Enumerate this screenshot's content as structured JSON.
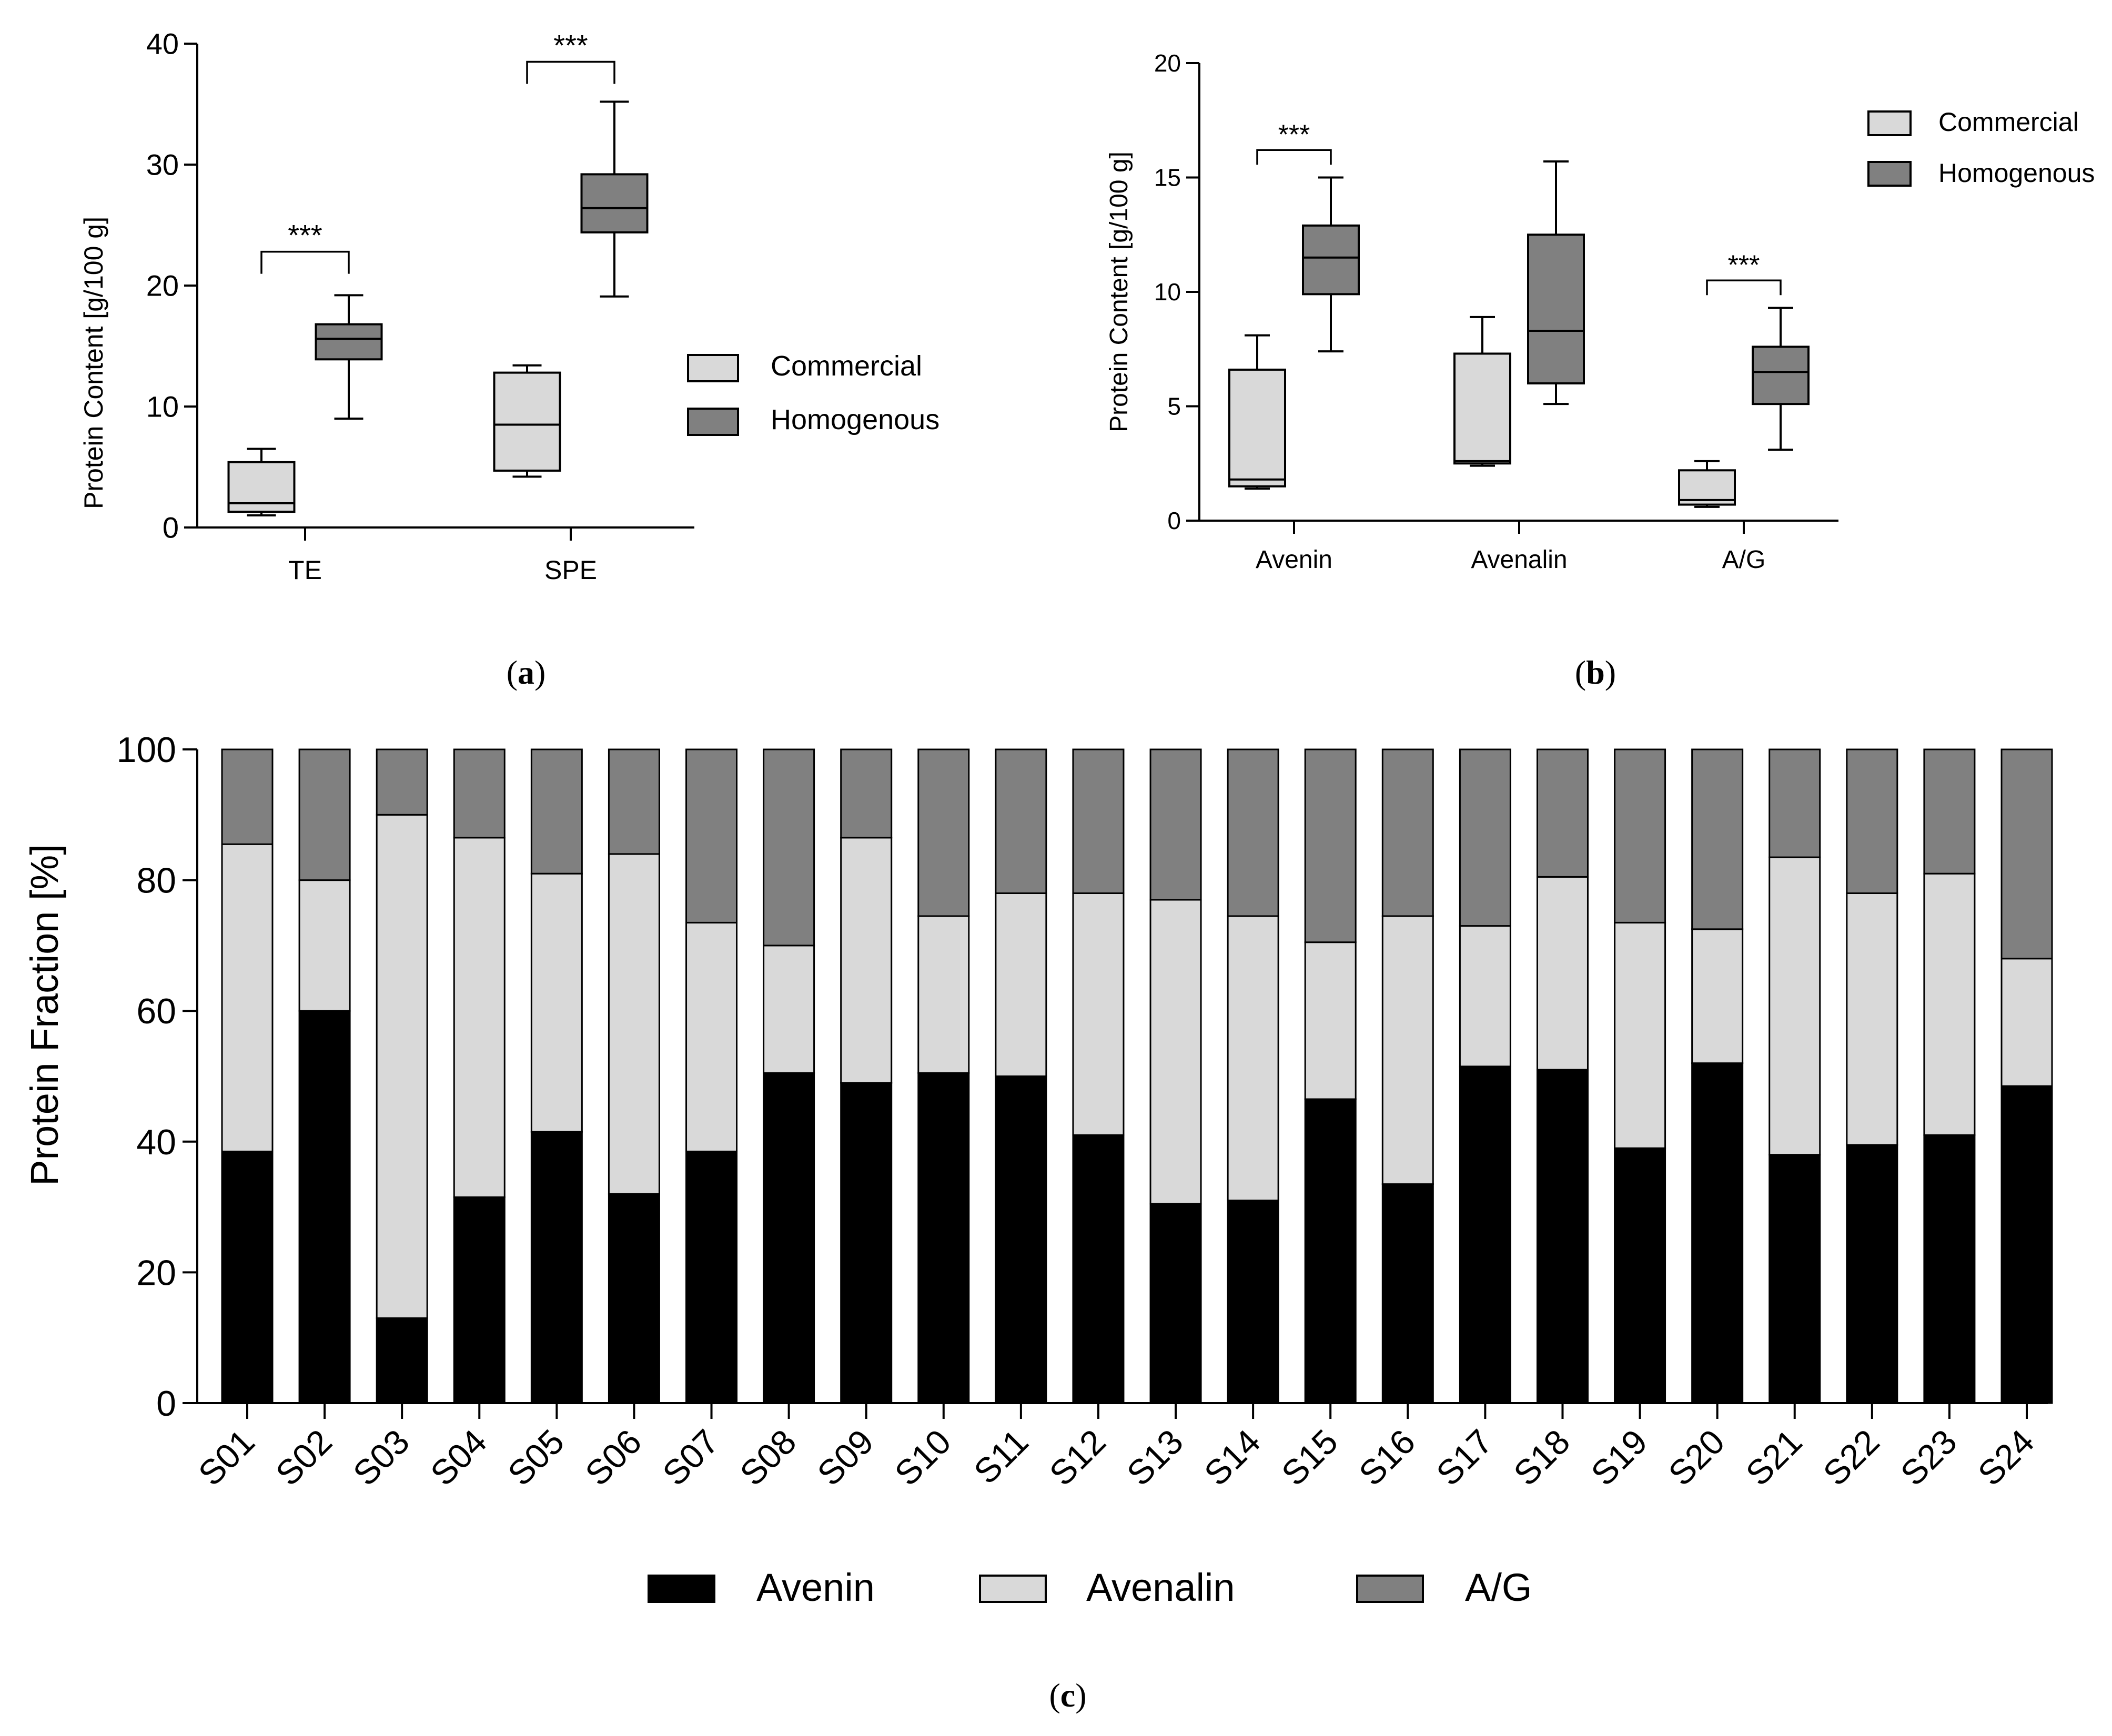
{
  "colors": {
    "commercial": "#d9d9d9",
    "homogenous": "#808080",
    "avenin": "#000000",
    "avenalin": "#d9d9d9",
    "ag": "#808080"
  },
  "chart_data": [
    {
      "id": "a",
      "type": "box",
      "panel_label_open": "(",
      "panel_label_letter": "a",
      "panel_label_close": ")",
      "ylabel": "Protein Content [g/100 g]",
      "ylim": [
        0,
        40
      ],
      "yticks": [
        "0",
        "10",
        "20",
        "30",
        "40"
      ],
      "categories": [
        "TE",
        "SPE"
      ],
      "legend": [
        "Commercial",
        "Homogenous"
      ],
      "boxes": [
        {
          "category": "TE",
          "series": "Commercial",
          "min": 1.0,
          "q1": 1.3,
          "median": 2.0,
          "q3": 5.4,
          "max": 6.5
        },
        {
          "category": "TE",
          "series": "Homogenous",
          "min": 9.0,
          "q1": 13.9,
          "median": 15.6,
          "q3": 16.8,
          "max": 19.2
        },
        {
          "category": "SPE",
          "series": "Commercial",
          "min": 4.2,
          "q1": 4.7,
          "median": 8.5,
          "q3": 12.8,
          "max": 13.4
        },
        {
          "category": "SPE",
          "series": "Homogenous",
          "min": 19.1,
          "q1": 24.4,
          "median": 26.4,
          "q3": 29.2,
          "max": 35.2
        }
      ],
      "significance": [
        {
          "category": "TE",
          "label": "***",
          "level": 22.8
        },
        {
          "category": "SPE",
          "label": "***",
          "level": 38.5
        }
      ]
    },
    {
      "id": "b",
      "type": "box",
      "panel_label_open": "(",
      "panel_label_letter": "b",
      "panel_label_close": ")",
      "ylabel": "Protein Content [g/100 g]",
      "ylim": [
        0,
        20
      ],
      "yticks": [
        "0",
        "5",
        "10",
        "15",
        "20"
      ],
      "categories": [
        "Avenin",
        "Avenalin",
        "A/G"
      ],
      "legend": [
        "Commercial",
        "Homogenous"
      ],
      "boxes": [
        {
          "category": "Avenin",
          "series": "Commercial",
          "min": 1.4,
          "q1": 1.5,
          "median": 1.8,
          "q3": 6.6,
          "max": 8.1
        },
        {
          "category": "Avenin",
          "series": "Homogenous",
          "min": 7.4,
          "q1": 9.9,
          "median": 11.5,
          "q3": 12.9,
          "max": 15.0
        },
        {
          "category": "Avenalin",
          "series": "Commercial",
          "min": 2.4,
          "q1": 2.5,
          "median": 2.6,
          "q3": 7.3,
          "max": 8.9
        },
        {
          "category": "Avenalin",
          "series": "Homogenous",
          "min": 5.1,
          "q1": 6.0,
          "median": 8.3,
          "q3": 12.5,
          "max": 15.7
        },
        {
          "category": "A/G",
          "series": "Commercial",
          "min": 0.6,
          "q1": 0.7,
          "median": 0.9,
          "q3": 2.2,
          "max": 2.6
        },
        {
          "category": "A/G",
          "series": "Homogenous",
          "min": 3.1,
          "q1": 5.1,
          "median": 6.5,
          "q3": 7.6,
          "max": 9.3
        }
      ],
      "significance": [
        {
          "category": "Avenin",
          "label": "***",
          "level": 16.2
        },
        {
          "category": "A/G",
          "label": "***",
          "level": 10.5
        }
      ]
    },
    {
      "id": "c",
      "type": "stacked-bar",
      "panel_label_open": "(",
      "panel_label_letter": "c",
      "panel_label_close": ")",
      "ylabel": "Protein Fraction [%]",
      "ylim": [
        0,
        100
      ],
      "yticks": [
        "0",
        "20",
        "40",
        "60",
        "80",
        "100"
      ],
      "categories": [
        "S01",
        "S02",
        "S03",
        "S04",
        "S05",
        "S06",
        "S07",
        "S08",
        "S09",
        "S10",
        "S11",
        "S12",
        "S13",
        "S14",
        "S15",
        "S16",
        "S17",
        "S18",
        "S19",
        "S20",
        "S21",
        "S22",
        "S23",
        "S24"
      ],
      "series": [
        {
          "name": "Avenin",
          "values": [
            38.5,
            60.0,
            13.0,
            31.5,
            41.5,
            32.0,
            38.5,
            50.5,
            49.0,
            50.5,
            50.0,
            41.0,
            30.5,
            31.0,
            46.5,
            33.5,
            51.5,
            51.0,
            39.0,
            52.0,
            38.0,
            39.5,
            41.0,
            48.5
          ]
        },
        {
          "name": "Avenalin",
          "values": [
            47.0,
            20.0,
            77.0,
            55.0,
            39.5,
            52.0,
            35.0,
            19.5,
            37.5,
            24.0,
            28.0,
            37.0,
            46.5,
            43.5,
            24.0,
            41.0,
            21.5,
            29.5,
            34.5,
            20.5,
            45.5,
            38.5,
            40.0,
            19.5
          ]
        },
        {
          "name": "A/G",
          "values": [
            14.5,
            20.0,
            10.0,
            13.5,
            19.0,
            16.0,
            26.5,
            30.0,
            13.5,
            25.5,
            22.0,
            22.0,
            23.0,
            25.5,
            29.5,
            25.5,
            27.0,
            19.5,
            26.5,
            27.5,
            16.5,
            22.0,
            19.0,
            32.0
          ]
        }
      ],
      "legend": [
        "Avenin",
        "Avenalin",
        "A/G"
      ]
    }
  ]
}
